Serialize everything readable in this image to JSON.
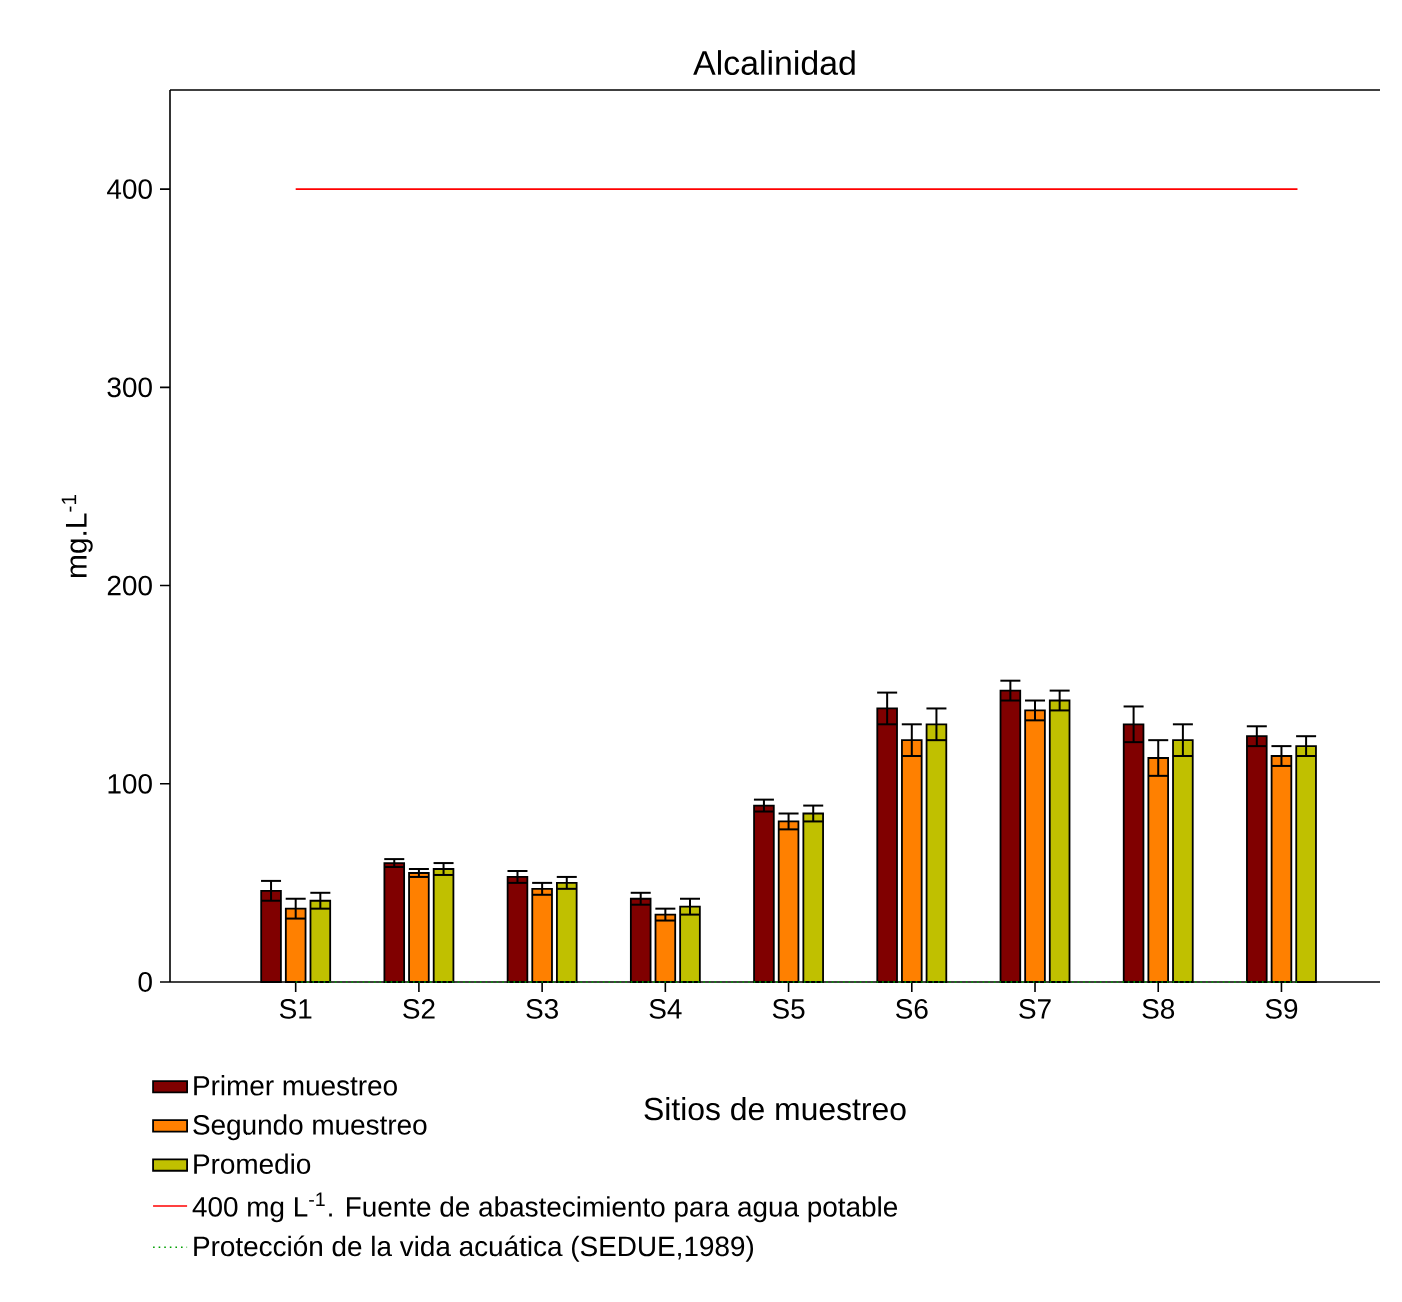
{
  "chart_data": {
    "type": "bar",
    "title": "Alcalinidad",
    "xlabel": "Sitios de muestreo",
    "ylabel": "mg.L$^{-1}$",
    "categories": [
      "S1",
      "S2",
      "S3",
      "S4",
      "S5",
      "S6",
      "S7",
      "S8",
      "S9"
    ],
    "series": [
      {
        "name": "Primer muestreo",
        "color": "#800000",
        "values": [
          46,
          60,
          53,
          42,
          89,
          138,
          147,
          130,
          124
        ],
        "errors": [
          5,
          2,
          3,
          3,
          3,
          8,
          5,
          9,
          5
        ]
      },
      {
        "name": "Segundo muestreo",
        "color": "#ff8000",
        "values": [
          37,
          55,
          47,
          34,
          81,
          122,
          137,
          113,
          114
        ],
        "errors": [
          5,
          2,
          3,
          3,
          4,
          8,
          5,
          9,
          5
        ]
      },
      {
        "name": "Promedio",
        "color": "#c0c000",
        "values": [
          41,
          57,
          50,
          38,
          85,
          130,
          142,
          122,
          119
        ],
        "errors": [
          4,
          3,
          3,
          4,
          4,
          8,
          5,
          8,
          5
        ]
      }
    ],
    "ref_lines": [
      {
        "axis": "y",
        "value": 400,
        "label": "400 mg L$^{-1}$. Fuente de abastecimiento para agua potable",
        "color": "#ff0000",
        "line_style": "solid"
      },
      {
        "axis": "y",
        "value": 0,
        "label": "Protección de la vida acuática (SEDUE,1989)",
        "color": "#00a000",
        "line_style": "dotted"
      }
    ],
    "ylim": [
      0,
      450
    ],
    "yticks": [
      0,
      100,
      200,
      300,
      400
    ],
    "legend": "bottom left",
    "grid": false
  }
}
